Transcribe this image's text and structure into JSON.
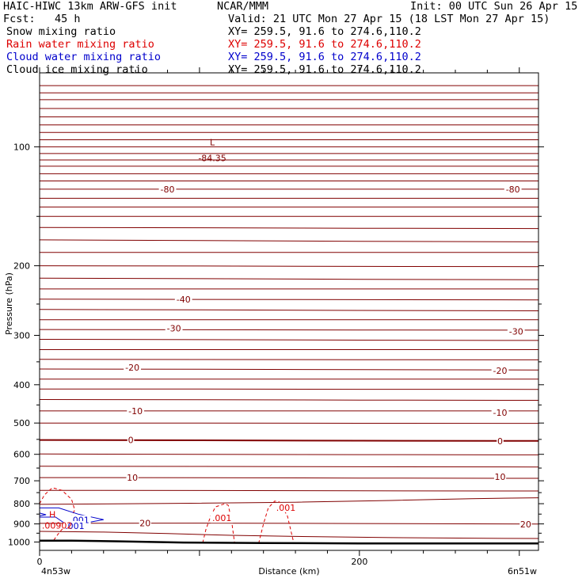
{
  "header": {
    "model": "HAIC-HIWC 13km ARW-GFS init",
    "org": "NCAR/MMM",
    "init": "Init: 00 UTC Sun 26 Apr 15",
    "fcst": "Fcst:   45 h",
    "valid": "Valid: 21 UTC Mon 27 Apr 15 (18 LST Mon 27 Apr 15)"
  },
  "fields": [
    {
      "name": "Snow mixing ratio",
      "xy": "XY= 259.5, 91.6 to 274.6,110.2",
      "color": "#000000"
    },
    {
      "name": "Rain water mixing ratio",
      "xy": "XY= 259.5, 91.6 to 274.6,110.2",
      "color": "#dd0000"
    },
    {
      "name": "Cloud water mixing ratio",
      "xy": "XY= 259.5, 91.6 to 274.6,110.2",
      "color": "#0000cc"
    },
    {
      "name": "Cloud ice mixing ratio",
      "xy": "XY= 259.5, 91.6 to 274.6,110.2",
      "color": "#000000"
    }
  ],
  "chart_data": {
    "type": "cross-section contour",
    "xlabel": "Distance (km)",
    "ylabel": "Pressure (hPa)",
    "xlim": [
      0,
      312
    ],
    "ylim": [
      1050,
      65
    ],
    "x_ticks": [
      "0",
      "200"
    ],
    "y_ticks": [
      "100",
      "200",
      "300",
      "400",
      "500",
      "600",
      "700",
      "800",
      "900",
      "1000"
    ],
    "left_endpoint": "4n53w",
    "right_endpoint": "6n51w",
    "temperature_color": "#800000",
    "temperature_labels": [
      {
        "text": "-80",
        "x": 80,
        "p": 128
      },
      {
        "text": "-80",
        "x": 296,
        "p": 128
      },
      {
        "text": "-40",
        "x": 90,
        "p": 243
      },
      {
        "text": "-30",
        "x": 84,
        "p": 288
      },
      {
        "text": "-30",
        "x": 298,
        "p": 293
      },
      {
        "text": "-20",
        "x": 58,
        "p": 362
      },
      {
        "text": "-20",
        "x": 288,
        "p": 368
      },
      {
        "text": "-10",
        "x": 60,
        "p": 466
      },
      {
        "text": "-10",
        "x": 288,
        "p": 470
      },
      {
        "text": "0",
        "x": 57,
        "p": 552
      },
      {
        "text": "0",
        "x": 288,
        "p": 555
      },
      {
        "text": "10",
        "x": 58,
        "p": 687
      },
      {
        "text": "10",
        "x": 288,
        "p": 683
      },
      {
        "text": "20",
        "x": 66,
        "p": 896
      },
      {
        "text": "20",
        "x": 304,
        "p": 901
      }
    ],
    "minimum_marker": {
      "symbol": "L",
      "value": "-84.35",
      "x": 108,
      "p": 100
    },
    "rain_labels": [
      {
        "text": ".001",
        "x": 114,
        "p": 870
      },
      {
        "text": ".001",
        "x": 154,
        "p": 818
      }
    ],
    "cloud_labels": [
      {
        "text": ".001",
        "x": 25,
        "p": 880
      },
      {
        "text": ".001",
        "x": 22,
        "p": 910
      }
    ],
    "maximum_marker": {
      "symbol": "H",
      "value": ".00902",
      "x": 8,
      "p": 909
    }
  }
}
